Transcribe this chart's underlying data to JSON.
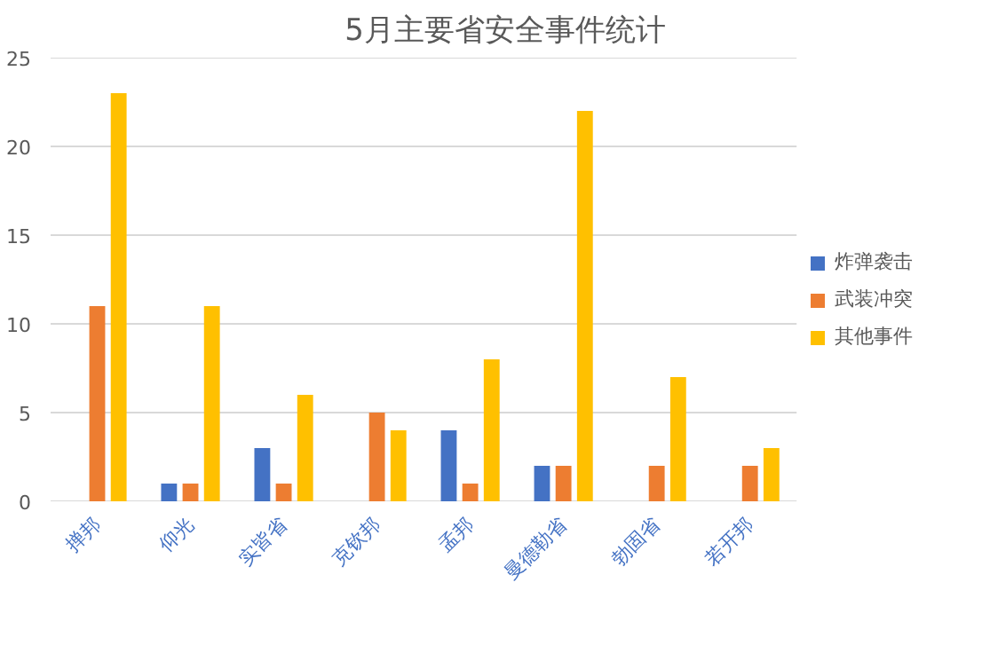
{
  "chart_data": {
    "type": "bar",
    "title": "5月主要省安全事件统计",
    "categories": [
      "掸邦",
      "仰光",
      "实皆省",
      "克钦邦",
      "孟邦",
      "曼德勒省",
      "勃固省",
      "若开邦"
    ],
    "series": [
      {
        "name": "炸弹袭击",
        "color": "#4472c4",
        "values": [
          0,
          1,
          3,
          0,
          4,
          2,
          0,
          0
        ]
      },
      {
        "name": "武装冲突",
        "color": "#ed7d31",
        "values": [
          11,
          1,
          1,
          5,
          1,
          2,
          2,
          2
        ]
      },
      {
        "name": "其他事件",
        "color": "#ffc000",
        "values": [
          23,
          11,
          6,
          4,
          8,
          22,
          7,
          3
        ]
      }
    ],
    "ylim": [
      0,
      25
    ],
    "yticks": [
      0,
      5,
      10,
      15,
      20,
      25
    ],
    "grid": "y",
    "legend": "right"
  }
}
